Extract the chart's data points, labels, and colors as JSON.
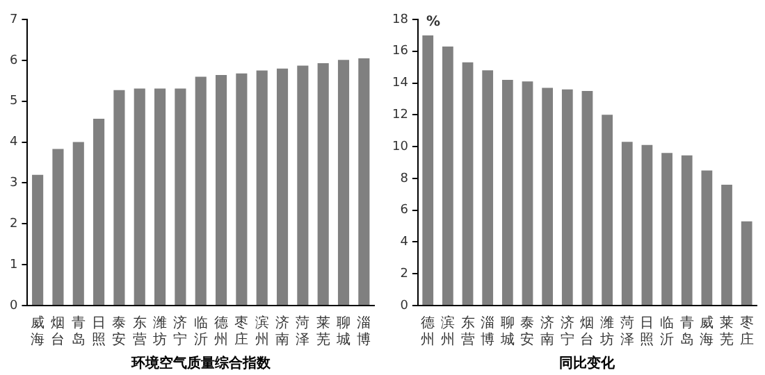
{
  "chart_data": [
    {
      "type": "bar",
      "xlabel": "环境空气质量综合指数",
      "categories": [
        "威海",
        "烟台",
        "青岛",
        "日照",
        "泰安",
        "东营",
        "潍坊",
        "济宁",
        "临沂",
        "德州",
        "枣庄",
        "滨州",
        "济南",
        "菏泽",
        "莱芜",
        "聊城",
        "淄博"
      ],
      "values": [
        3.2,
        3.83,
        4.0,
        4.57,
        5.27,
        5.31,
        5.31,
        5.31,
        5.6,
        5.64,
        5.68,
        5.75,
        5.8,
        5.87,
        5.93,
        6.01,
        6.05
      ],
      "color": "#808080",
      "ylim": [
        0,
        7
      ],
      "yticks": [
        0,
        1,
        2,
        3,
        4,
        5,
        6,
        7
      ],
      "grid": false,
      "legend": false
    },
    {
      "type": "bar",
      "xlabel": "同比变化",
      "ylabel": "%",
      "categories": [
        "德州",
        "滨州",
        "东营",
        "淄博",
        "聊城",
        "泰安",
        "济南",
        "济宁",
        "烟台",
        "潍坊",
        "菏泽",
        "日照",
        "临沂",
        "青岛",
        "威海",
        "莱芜",
        "枣庄"
      ],
      "values": [
        17.0,
        16.3,
        15.3,
        14.8,
        14.2,
        14.1,
        13.7,
        13.6,
        13.5,
        12.0,
        10.3,
        10.1,
        9.6,
        9.45,
        8.5,
        7.6,
        5.3
      ],
      "color": "#808080",
      "ylim": [
        0,
        18
      ],
      "yticks": [
        0,
        2,
        4,
        6,
        8,
        10,
        12,
        14,
        16,
        18
      ],
      "grid": false,
      "legend": false
    }
  ]
}
